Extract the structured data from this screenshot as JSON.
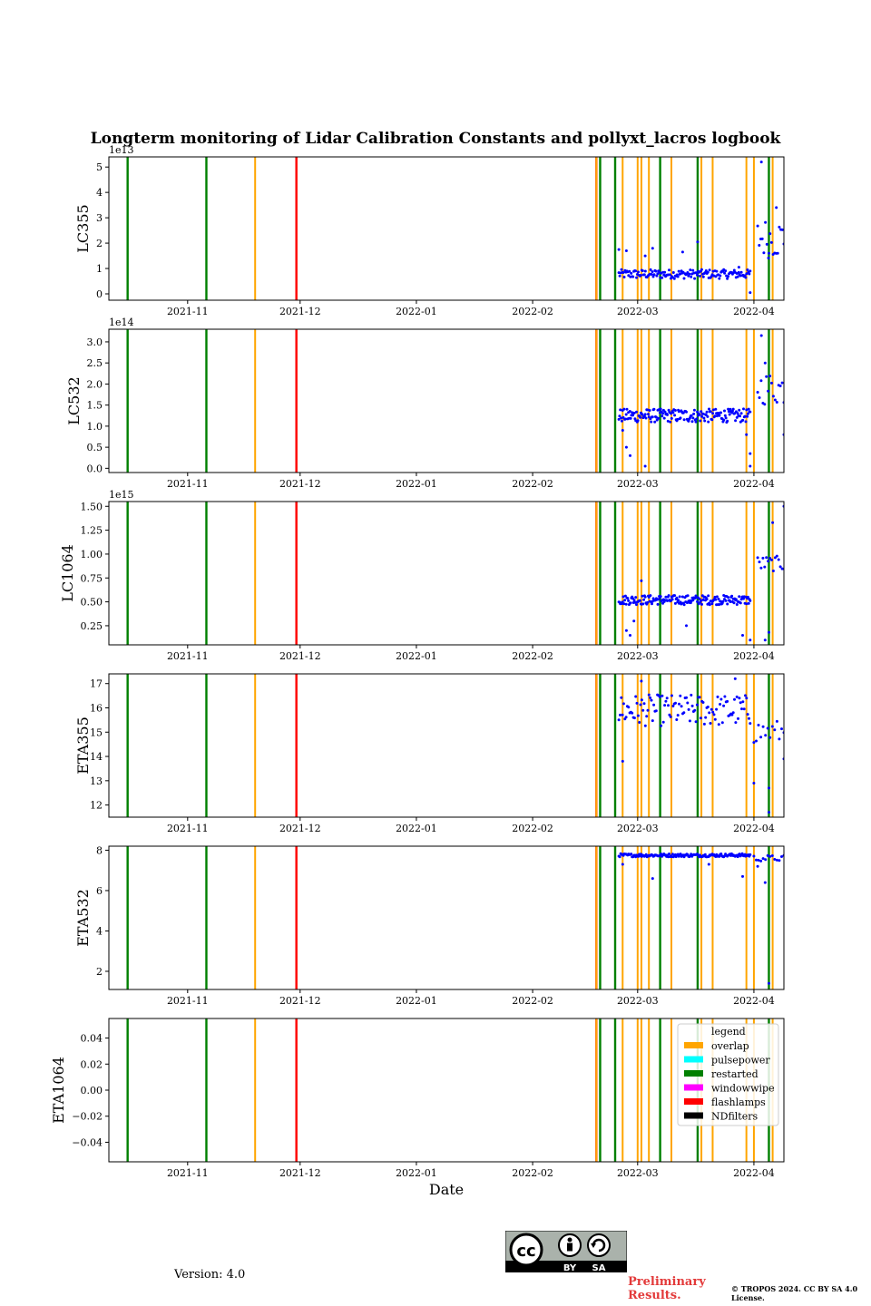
{
  "figure": {
    "title": "Longterm monitoring of Lidar Calibration Constants and pollyxt_lacros logbook",
    "x_axis_label": "Date",
    "version": "Version: 4.0",
    "preliminary": "Preliminary Results.",
    "copyright": "© TROPOS 2024. CC BY SA 4.0 License.",
    "license_badge": {
      "icon": "cc-by-sa-icon",
      "by": "BY",
      "sa": "SA"
    }
  },
  "chart_data": {
    "type": "scatter",
    "x_range": [
      "2021-10-11",
      "2022-04-09"
    ],
    "x_tick_labels": [
      "2021-11",
      "2021-12",
      "2022-01",
      "2022-02",
      "2022-03",
      "2022-04"
    ],
    "x_tick_dates": [
      "2021-11-01",
      "2021-12-01",
      "2022-01-01",
      "2022-02-01",
      "2022-03-01",
      "2022-04-01"
    ],
    "colors": {
      "overlap": "#ffa500",
      "pulsepower": "#00ffff",
      "restarted": "#008000",
      "windowwipe": "#ff00ff",
      "flashlamps": "#ff0000",
      "NDfilters": "#000000",
      "data": "#0000ff"
    },
    "logbook_events": [
      {
        "date": "2021-10-16",
        "type": "restarted"
      },
      {
        "date": "2021-11-06",
        "type": "restarted"
      },
      {
        "date": "2021-11-19",
        "type": "overlap"
      },
      {
        "date": "2021-11-30",
        "type": "overlap"
      },
      {
        "date": "2021-11-30",
        "type": "flashlamps"
      },
      {
        "date": "2022-02-18",
        "type": "flashlamps"
      },
      {
        "date": "2022-02-18",
        "type": "overlap"
      },
      {
        "date": "2022-02-19",
        "type": "restarted"
      },
      {
        "date": "2022-02-23",
        "type": "overlap"
      },
      {
        "date": "2022-02-23",
        "type": "restarted"
      },
      {
        "date": "2022-02-25",
        "type": "overlap"
      },
      {
        "date": "2022-03-01",
        "type": "overlap"
      },
      {
        "date": "2022-03-02",
        "type": "overlap"
      },
      {
        "date": "2022-03-04",
        "type": "overlap"
      },
      {
        "date": "2022-03-07",
        "type": "restarted"
      },
      {
        "date": "2022-03-10",
        "type": "overlap"
      },
      {
        "date": "2022-03-17",
        "type": "restarted"
      },
      {
        "date": "2022-03-18",
        "type": "overlap"
      },
      {
        "date": "2022-03-21",
        "type": "overlap"
      },
      {
        "date": "2022-03-30",
        "type": "overlap"
      },
      {
        "date": "2022-04-01",
        "type": "overlap"
      },
      {
        "date": "2022-04-05",
        "type": "restarted"
      },
      {
        "date": "2022-04-06",
        "type": "overlap"
      }
    ],
    "legend": {
      "title": "legend",
      "placement": "upper right of last panel",
      "entries": [
        "overlap",
        "pulsepower",
        "restarted",
        "windowwipe",
        "flashlamps",
        "NDfilters"
      ]
    },
    "panels": [
      {
        "ylabel": "LC355",
        "offset": "1e13",
        "ylim": [
          -0.25,
          5.4
        ],
        "yticks": [
          0,
          1,
          2,
          3,
          4,
          5
        ],
        "ytick_labels": [
          "0",
          "1",
          "2",
          "3",
          "4",
          "5"
        ],
        "series": [
          {
            "range": [
              "2022-02-24",
              "2022-03-31"
            ],
            "base": 0.78,
            "amp": 0.18,
            "n": 150,
            "outliers": [
              [
                "2022-02-24",
                1.75
              ],
              [
                "2022-02-26",
                1.7
              ],
              [
                "2022-03-03",
                1.5
              ],
              [
                "2022-03-05",
                1.8
              ],
              [
                "2022-03-13",
                1.65
              ],
              [
                "2022-03-17",
                2.05
              ],
              [
                "2022-03-31",
                0.05
              ],
              [
                "2022-03-28",
                1.05
              ]
            ]
          },
          {
            "range": [
              "2022-04-02",
              "2022-04-09"
            ],
            "base": 2.2,
            "amp": 0.8,
            "n": 18,
            "outliers": [
              [
                "2022-04-03",
                5.2
              ],
              [
                "2022-04-07",
                3.4
              ],
              [
                "2022-04-05",
                1.6
              ]
            ]
          }
        ]
      },
      {
        "ylabel": "LC532",
        "offset": "1e14",
        "ylim": [
          -0.1,
          3.3
        ],
        "yticks": [
          0,
          0.5,
          1,
          1.5,
          2,
          2.5,
          3
        ],
        "ytick_labels": [
          "0.0",
          "0.5",
          "1.0",
          "1.5",
          "2.0",
          "2.5",
          "3.0"
        ],
        "series": [
          {
            "range": [
              "2022-02-24",
              "2022-03-31"
            ],
            "base": 1.25,
            "amp": 0.16,
            "n": 180,
            "outliers": [
              [
                "2022-02-26",
                0.5
              ],
              [
                "2022-02-27",
                0.3
              ],
              [
                "2022-02-25",
                0.9
              ],
              [
                "2022-03-03",
                0.05
              ],
              [
                "2022-03-30",
                0.8
              ],
              [
                "2022-03-31",
                0.35
              ],
              [
                "2022-03-31",
                0.05
              ]
            ]
          },
          {
            "range": [
              "2022-04-02",
              "2022-04-09"
            ],
            "base": 1.9,
            "amp": 0.4,
            "n": 16,
            "outliers": [
              [
                "2022-04-03",
                3.15
              ],
              [
                "2022-04-04",
                2.5
              ],
              [
                "2022-04-09",
                0.8
              ]
            ]
          }
        ]
      },
      {
        "ylabel": "LC1064",
        "offset": "1e15",
        "ylim": [
          0.05,
          1.55
        ],
        "yticks": [
          0.25,
          0.5,
          0.75,
          1.0,
          1.25,
          1.5
        ],
        "ytick_labels": [
          "0.25",
          "0.50",
          "0.75",
          "1.00",
          "1.25",
          "1.50"
        ],
        "series": [
          {
            "range": [
              "2022-02-24",
              "2022-03-31"
            ],
            "base": 0.52,
            "amp": 0.05,
            "n": 180,
            "outliers": [
              [
                "2022-02-26",
                0.2
              ],
              [
                "2022-02-27",
                0.15
              ],
              [
                "2022-02-28",
                0.3
              ],
              [
                "2022-03-14",
                0.25
              ],
              [
                "2022-03-29",
                0.15
              ],
              [
                "2022-03-31",
                0.1
              ],
              [
                "2022-03-02",
                0.72
              ]
            ]
          },
          {
            "range": [
              "2022-04-02",
              "2022-04-09"
            ],
            "base": 0.9,
            "amp": 0.08,
            "n": 16,
            "outliers": [
              [
                "2022-04-06",
                1.33
              ],
              [
                "2022-04-09",
                1.5
              ],
              [
                "2022-04-05",
                0.18
              ],
              [
                "2022-04-04",
                0.1
              ]
            ]
          }
        ]
      },
      {
        "ylabel": "ETA355",
        "offset": "",
        "ylim": [
          11.5,
          17.4
        ],
        "yticks": [
          12,
          13,
          14,
          15,
          16,
          17
        ],
        "ytick_labels": [
          "12",
          "13",
          "14",
          "15",
          "16",
          "17"
        ],
        "series": [
          {
            "range": [
              "2022-02-24",
              "2022-03-31"
            ],
            "base": 15.9,
            "amp": 0.65,
            "n": 110,
            "outliers": [
              [
                "2022-02-25",
                13.8
              ],
              [
                "2022-03-02",
                17.1
              ],
              [
                "2022-03-27",
                17.2
              ]
            ]
          },
          {
            "range": [
              "2022-04-01",
              "2022-04-09"
            ],
            "base": 15.0,
            "amp": 0.5,
            "n": 14,
            "outliers": [
              [
                "2022-04-01",
                12.9
              ],
              [
                "2022-04-05",
                12.7
              ],
              [
                "2022-04-09",
                13.9
              ],
              [
                "2022-04-05",
                11.7
              ]
            ]
          }
        ]
      },
      {
        "ylabel": "ETA532",
        "offset": "",
        "ylim": [
          1.1,
          8.2
        ],
        "yticks": [
          2,
          4,
          6,
          8
        ],
        "ytick_labels": [
          "2",
          "4",
          "6",
          "8"
        ],
        "series": [
          {
            "range": [
              "2022-02-24",
              "2022-03-31"
            ],
            "base": 7.75,
            "amp": 0.08,
            "n": 150,
            "outliers": [
              [
                "2022-02-25",
                7.3
              ],
              [
                "2022-03-05",
                6.6
              ],
              [
                "2022-03-29",
                6.7
              ],
              [
                "2022-03-20",
                7.3
              ]
            ]
          },
          {
            "range": [
              "2022-04-01",
              "2022-04-09"
            ],
            "base": 7.6,
            "amp": 0.15,
            "n": 14,
            "outliers": [
              [
                "2022-04-04",
                6.4
              ],
              [
                "2022-04-05",
                1.4
              ],
              [
                "2022-04-02",
                7.2
              ]
            ]
          }
        ]
      },
      {
        "ylabel": "ETA1064",
        "offset": "",
        "ylim": [
          -0.055,
          0.055
        ],
        "yticks": [
          -0.04,
          -0.02,
          0,
          0.02,
          0.04
        ],
        "ytick_labels": [
          "−0.04",
          "−0.02",
          "0.00",
          "0.02",
          "0.04"
        ],
        "series": []
      }
    ]
  }
}
